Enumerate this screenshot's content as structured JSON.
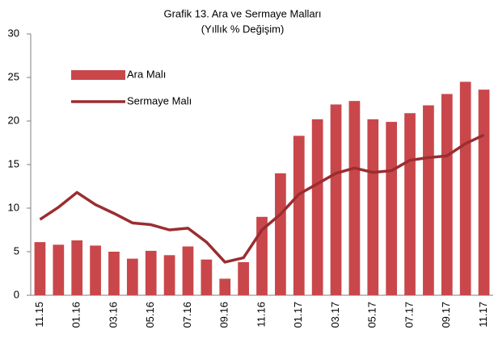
{
  "chart_data": {
    "type": "bar_line",
    "title": "Grafik 13. Ara ve Sermaye Malları",
    "subtitle": "(Yıllık % Değişim)",
    "categories": [
      "11.15",
      null,
      "01.16",
      null,
      "03.16",
      null,
      "05.16",
      null,
      "07.16",
      null,
      "09.16",
      null,
      "11.16",
      null,
      "01.17",
      null,
      "03.17",
      null,
      "05.17",
      null,
      "07.17",
      null,
      "09.17",
      null,
      "11.17"
    ],
    "series": [
      {
        "name": "Ara Malı",
        "type": "bar",
        "color": "#c9474a",
        "values": [
          6.1,
          5.8,
          6.3,
          5.7,
          5.0,
          4.2,
          5.1,
          4.6,
          5.6,
          4.1,
          1.9,
          3.8,
          9.0,
          14.0,
          18.3,
          20.2,
          21.9,
          22.3,
          20.2,
          19.9,
          20.9,
          21.8,
          23.1,
          24.5,
          23.6
        ]
      },
      {
        "name": "Sermaye Malı",
        "type": "line",
        "color": "#9b2d30",
        "values": [
          8.7,
          10.1,
          11.8,
          10.4,
          9.4,
          8.3,
          8.1,
          7.5,
          7.7,
          6.1,
          3.8,
          4.3,
          7.5,
          9.3,
          11.6,
          12.8,
          14.0,
          14.6,
          14.1,
          14.3,
          15.5,
          15.8,
          16.0,
          17.4,
          18.4
        ]
      }
    ],
    "ylim": [
      0,
      30
    ],
    "yticks": [
      0,
      5,
      10,
      15,
      20,
      25,
      30
    ],
    "grid": false,
    "legend": "upper left"
  }
}
